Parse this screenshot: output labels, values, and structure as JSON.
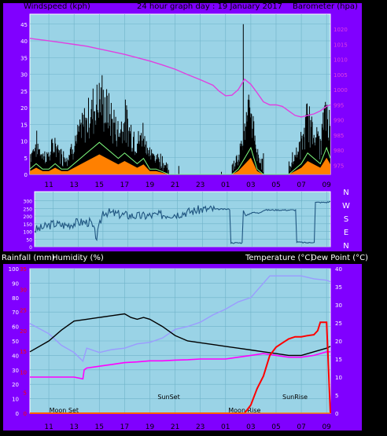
{
  "header": {
    "left_label": "Windspeed (kph)",
    "title": "24 hour graph day : 19 January 2017",
    "right_label": "Barometer (hpa)"
  },
  "labels": {
    "rain": "Rainfall (mm)",
    "humidity": "Humidity (%)",
    "temperature": "Temperature (°C)",
    "dewpoint": "Dew Point (°C)"
  },
  "colors": {
    "panel_bg": "#9ad3e6",
    "frame_bg": "#8000ff",
    "wind": "#000000",
    "gust": "#80ff80",
    "wind_fill": "#ff8000",
    "baro": "#e040e0",
    "direction": "#1f5580",
    "temperature": "#000000",
    "humidity": "#9b9bff",
    "dewpoint": "#ff00ff",
    "rain": "#ff0000"
  },
  "chart_data": [
    {
      "type": "line",
      "name": "wind",
      "title": "24 hour graph day : 19 January 2017",
      "ylabel_left": "Windspeed (kph)",
      "ylabel_right": "Barometer (hpa)",
      "x_ticks": [
        "11",
        "13",
        "15",
        "17",
        "19",
        "21",
        "23",
        "01",
        "03",
        "05",
        "07",
        "09"
      ],
      "x_tick_hours": [
        11,
        13,
        15,
        17,
        19,
        21,
        23,
        25,
        27,
        29,
        31,
        33
      ],
      "x_range": [
        9.5,
        33.3
      ],
      "y_left_ticks": [
        0,
        5,
        10,
        15,
        20,
        25,
        30,
        35,
        40,
        45
      ],
      "y_left_range": [
        0,
        48
      ],
      "y_right_ticks": [
        975,
        980,
        985,
        990,
        995,
        1000,
        1005,
        1010,
        1015,
        1020
      ],
      "y_right_range": [
        972,
        1025
      ],
      "series": [
        {
          "name": "Barometer (hpa)",
          "axis": "right",
          "x": [
            9.5,
            10,
            11,
            12,
            13,
            14,
            15,
            16,
            17,
            18,
            19,
            20,
            21,
            22,
            23,
            24,
            24.5,
            25,
            25.5,
            26,
            26.5,
            27,
            27.5,
            28,
            28.5,
            29,
            29.5,
            30,
            30.5,
            31,
            31.5,
            32,
            32.5,
            33,
            33.3
          ],
          "values": [
            1017,
            1016.7,
            1016.2,
            1015.6,
            1015,
            1014.4,
            1013.5,
            1012.6,
            1011.7,
            1010.6,
            1009.5,
            1008.2,
            1006.8,
            1005,
            1003.3,
            1001.5,
            999.5,
            998,
            998.2,
            1000,
            1003.5,
            1001.8,
            999,
            996,
            995,
            995,
            994.5,
            993,
            991.5,
            991,
            991.5,
            992,
            993,
            994.5,
            995
          ]
        },
        {
          "name": "Wind speed (average)",
          "axis": "left",
          "x": [
            9.5,
            10,
            10.5,
            11,
            11.5,
            12,
            12.5,
            13,
            13.5,
            14,
            14.5,
            15,
            15.5,
            16,
            16.5,
            17,
            17.5,
            18,
            18.5,
            19,
            19.5,
            20,
            20.5,
            21,
            22,
            25.5,
            26,
            26.5,
            27,
            27.5,
            28,
            29,
            30,
            30.5,
            31,
            31.5,
            32,
            32.5,
            33,
            33.3
          ],
          "values": [
            1,
            2,
            1,
            1,
            2,
            1,
            1,
            2,
            3,
            4,
            5,
            6,
            5,
            4,
            3,
            4,
            3,
            2,
            3,
            1,
            1,
            0.5,
            0,
            0,
            0,
            0,
            1,
            3,
            5,
            1,
            0,
            0,
            0,
            1,
            2,
            4,
            3,
            2,
            5,
            3
          ]
        }
      ]
    },
    {
      "type": "line",
      "name": "wind_direction",
      "right_labels": [
        "N",
        "W",
        "S",
        "E",
        "N"
      ],
      "y_ticks": [
        0,
        50,
        100,
        150,
        200,
        250,
        300
      ],
      "y_range": [
        0,
        360
      ],
      "x_range": [
        9.5,
        33.3
      ],
      "series": [
        {
          "name": "Wind direction",
          "x": [
            9.5,
            10,
            11,
            12,
            13,
            14,
            14.5,
            15,
            16,
            17,
            18,
            19,
            20,
            21,
            22,
            23,
            24,
            25,
            25.2,
            25.3,
            26.2,
            26.3,
            26.5,
            27,
            27.5,
            28,
            29,
            30,
            30.5,
            30.6,
            31.5,
            32,
            32.1,
            33,
            33.3
          ],
          "values": [
            110,
            120,
            150,
            140,
            160,
            160,
            60,
            230,
            215,
            205,
            200,
            205,
            210,
            215,
            230,
            245,
            245,
            245,
            245,
            25,
            25,
            240,
            200,
            225,
            220,
            240,
            240,
            240,
            240,
            30,
            25,
            30,
            290,
            290,
            295
          ]
        }
      ]
    },
    {
      "type": "line",
      "name": "temperature_humidity",
      "ylabel_left_1": "Rainfall (mm)",
      "ylabel_left_2": "Humidity (%)",
      "ylabel_right": "Temperature (°C)",
      "ylabel_right_2": "Dew Point (°C)",
      "humidity_ticks": [
        0,
        10,
        20,
        30,
        40,
        50,
        60,
        70,
        80,
        90,
        100
      ],
      "rain_ticks": [
        0,
        5,
        10,
        15,
        20,
        25,
        30,
        35
      ],
      "temp_ticks": [
        0,
        5,
        10,
        15,
        20,
        25,
        30,
        35,
        40
      ],
      "humidity_range": [
        0,
        100
      ],
      "rain_range": [
        0,
        35
      ],
      "temp_range": [
        0,
        40
      ],
      "x_range": [
        9.5,
        33.3
      ],
      "annotations": [
        {
          "x": 12.2,
          "text": "Moon Set"
        },
        {
          "x": 20.5,
          "text": "SunSet"
        },
        {
          "x": 26.5,
          "text": "Moon Rise"
        },
        {
          "x": 30.5,
          "text": "SunRise"
        }
      ],
      "series": [
        {
          "name": "Temperature",
          "axis": "temp",
          "x": [
            9.5,
            11,
            12,
            13,
            14,
            15,
            16,
            17,
            17.5,
            18,
            18.5,
            19,
            20,
            21,
            22,
            23,
            24,
            25,
            26,
            27,
            28,
            29,
            30,
            31,
            32,
            33,
            33.3
          ],
          "values": [
            17,
            20,
            23,
            25.5,
            26,
            26.5,
            27,
            27.5,
            26.5,
            26,
            26.5,
            26,
            24,
            21.5,
            20,
            19.5,
            19,
            18.5,
            18,
            17.5,
            17,
            16.5,
            16,
            16,
            17,
            18,
            18.5
          ]
        },
        {
          "name": "Humidity",
          "axis": "humidity",
          "x": [
            9.5,
            11,
            12,
            13,
            13.7,
            14,
            15,
            16,
            17,
            18,
            19,
            20,
            21,
            22,
            23,
            24,
            25,
            26,
            27,
            27.5,
            28,
            28.5,
            29,
            30,
            31,
            32,
            33,
            33.3
          ],
          "values": [
            62,
            55,
            47,
            42,
            36,
            45,
            42,
            44,
            45,
            48,
            49,
            52,
            58,
            60,
            63,
            68,
            72,
            77,
            80,
            85,
            90,
            95,
            95,
            95,
            95,
            93,
            92,
            91
          ]
        },
        {
          "name": "Dew Point",
          "axis": "temp",
          "x": [
            9.5,
            11,
            12,
            13,
            13.7,
            13.8,
            14,
            15,
            16,
            17,
            18,
            19,
            20,
            21,
            22,
            23,
            24,
            25,
            26,
            27,
            28,
            29,
            30,
            31,
            32,
            33,
            33.3
          ],
          "values": [
            10,
            10,
            10,
            10,
            9.5,
            12,
            12.5,
            13,
            13.5,
            14,
            14.2,
            14.5,
            14.5,
            14.7,
            14.8,
            15,
            15,
            15,
            15.5,
            16,
            16.5,
            16,
            15.5,
            15.5,
            16,
            17,
            17
          ]
        },
        {
          "name": "Rainfall",
          "axis": "rain",
          "x": [
            9.5,
            26.5,
            27,
            27.5,
            28,
            28.5,
            29,
            29.5,
            30,
            30.5,
            31,
            31.5,
            32,
            32.3,
            32.5,
            33,
            33.3
          ],
          "values": [
            0,
            0,
            2,
            6,
            9,
            14,
            16,
            17,
            18,
            18.5,
            18.5,
            18.8,
            19,
            20,
            22,
            22,
            0
          ]
        }
      ]
    }
  ]
}
